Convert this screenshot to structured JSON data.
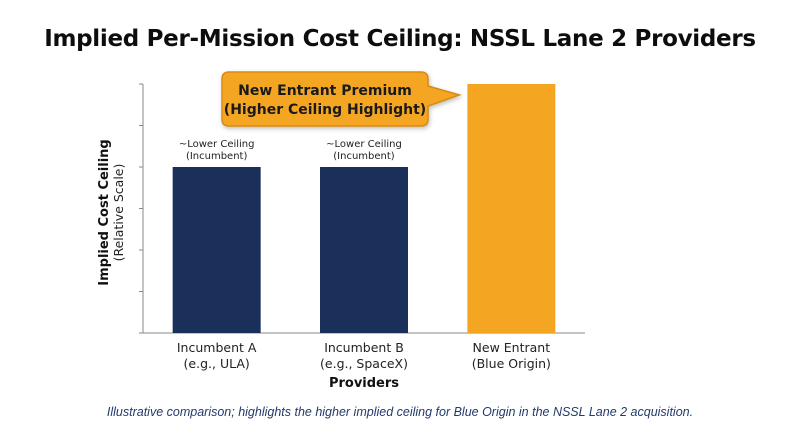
{
  "title": "Implied Per-Mission Cost Ceiling: NSSL Lane 2 Providers",
  "footnote": "Illustrative comparison; highlights the higher implied ceiling for Blue Origin in the NSSL Lane 2 acquisition.",
  "colors": {
    "incumbent": "#1b2f5b",
    "highlight": "#f4a623",
    "callout_border": "#d98a12",
    "axis": "#888888"
  },
  "chart_data": {
    "type": "bar",
    "xlabel": "Providers",
    "ylabel": "Implied Cost Ceiling",
    "ylabel_sub": "(Relative Scale)",
    "ylim": [
      0,
      6
    ],
    "yticks": [
      0,
      1,
      2,
      3,
      4,
      5,
      6
    ],
    "ytick_labels_shown": false,
    "grid": false,
    "categories": [
      [
        "Incumbent A",
        "(e.g., ULA)"
      ],
      [
        "Incumbent B",
        "(e.g., SpaceX)"
      ],
      [
        "New Entrant",
        "(Blue Origin)"
      ]
    ],
    "values": [
      4,
      4,
      6
    ],
    "bar_colors": [
      "#1b2f5b",
      "#1b2f5b",
      "#f4a623"
    ],
    "bar_annotations": [
      [
        "~Lower Ceiling",
        "(Incumbent)"
      ],
      [
        "~Lower Ceiling",
        "(Incumbent)"
      ],
      null
    ],
    "callout": [
      "New Entrant Premium",
      "(Higher Ceiling Highlight)"
    ]
  }
}
